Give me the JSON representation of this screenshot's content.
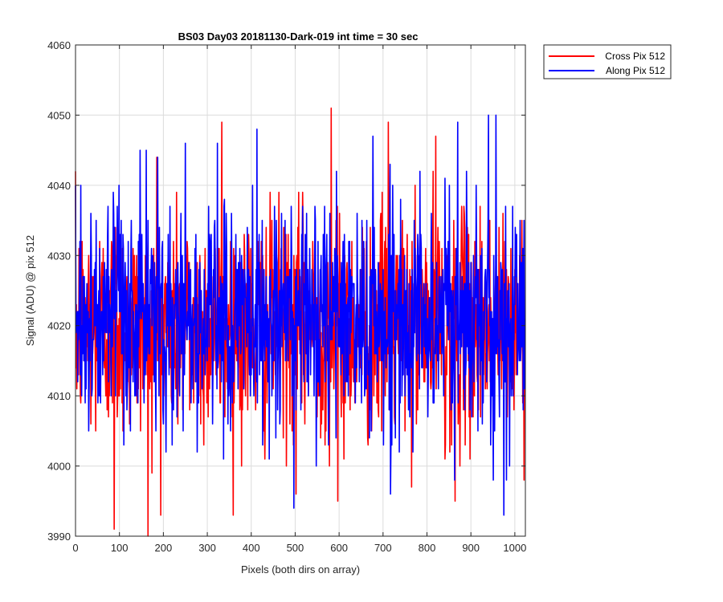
{
  "chart_data": {
    "type": "line",
    "title": "BS03 Day03 20181130-Dark-019 int time = 30 sec",
    "xlabel": "Pixels (both dirs on array)",
    "ylabel": "Signal (ADU) @ pix 512",
    "xlim": [
      0,
      1024
    ],
    "ylim": [
      3990,
      4060
    ],
    "xticks": [
      0,
      100,
      200,
      300,
      400,
      500,
      600,
      700,
      800,
      900,
      1000
    ],
    "yticks": [
      3990,
      4000,
      4010,
      4020,
      4030,
      4040,
      4050,
      4060
    ],
    "grid": true,
    "legend_position": "outside-top-right",
    "series": [
      {
        "name": "Cross Pix 512",
        "color": "#ff0000",
        "summary": {
          "count": 1024,
          "mean": 4020,
          "min": 3990,
          "max": 4051
        },
        "landmarks": [
          [
            88,
            3991
          ],
          [
            165,
            3990
          ],
          [
            185,
            4044
          ],
          [
            333,
            4049
          ],
          [
            502,
            3996
          ],
          [
            582,
            4051
          ],
          [
            597,
            3995
          ],
          [
            712,
            4049
          ],
          [
            820,
            4047
          ],
          [
            864,
            3995
          ],
          [
            1023,
            4021
          ]
        ]
      },
      {
        "name": "Along Pix 512",
        "color": "#0000ff",
        "summary": {
          "count": 1024,
          "mean": 4021,
          "min": 3993,
          "max": 4050
        },
        "landmarks": [
          [
            0,
            4040
          ],
          [
            12,
            4040
          ],
          [
            147,
            4045
          ],
          [
            187,
            4044
          ],
          [
            250,
            4046
          ],
          [
            413,
            4048
          ],
          [
            497,
            3994
          ],
          [
            870,
            4049
          ],
          [
            940,
            4050
          ],
          [
            957,
            4050
          ],
          [
            975,
            3993
          ],
          [
            1023,
            4018
          ]
        ]
      }
    ]
  }
}
